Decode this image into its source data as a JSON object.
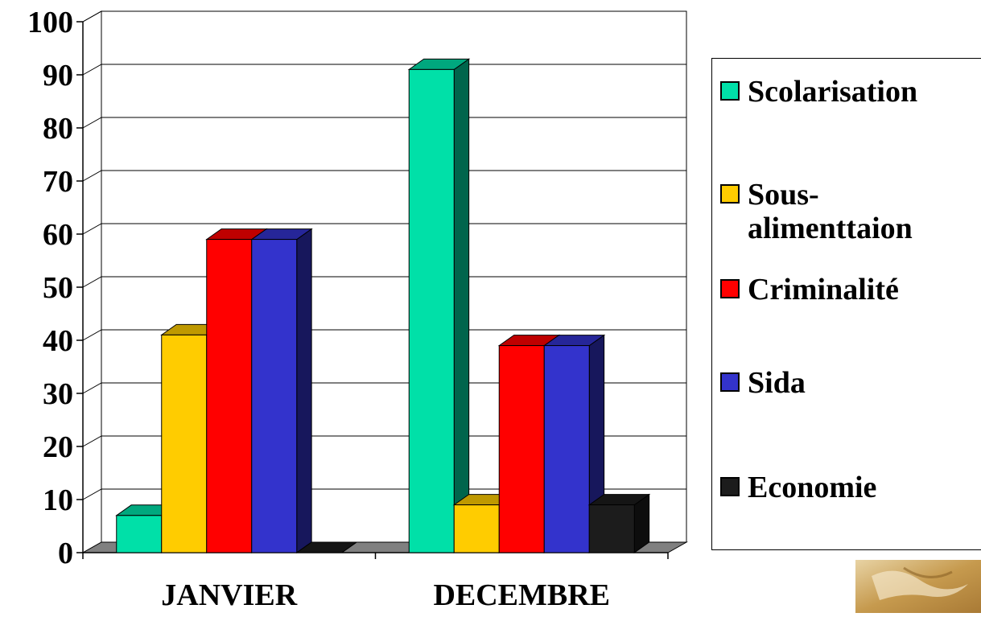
{
  "chart_data": {
    "type": "bar",
    "title": "",
    "xlabel": "",
    "ylabel": "",
    "categories": [
      "JANVIER",
      "DECEMBRE"
    ],
    "ylim": [
      0,
      100
    ],
    "yticks": [
      0,
      10,
      20,
      30,
      40,
      50,
      60,
      70,
      80,
      90,
      100
    ],
    "grid": true,
    "legend_position": "right",
    "series": [
      {
        "name": "Scolarisation",
        "values": [
          7,
          91
        ],
        "color": "#00E0A8"
      },
      {
        "name": "Sous-\nalimenttaion",
        "values": [
          41,
          9
        ],
        "color": "#FFCC00"
      },
      {
        "name": "Criminalité",
        "values": [
          59,
          39
        ],
        "color": "#FF0000"
      },
      {
        "name": "Sida",
        "values": [
          59,
          39
        ],
        "color": "#3333CC"
      },
      {
        "name": "Economie",
        "values": [
          0,
          9
        ],
        "color": "#1C1C1C"
      }
    ]
  }
}
